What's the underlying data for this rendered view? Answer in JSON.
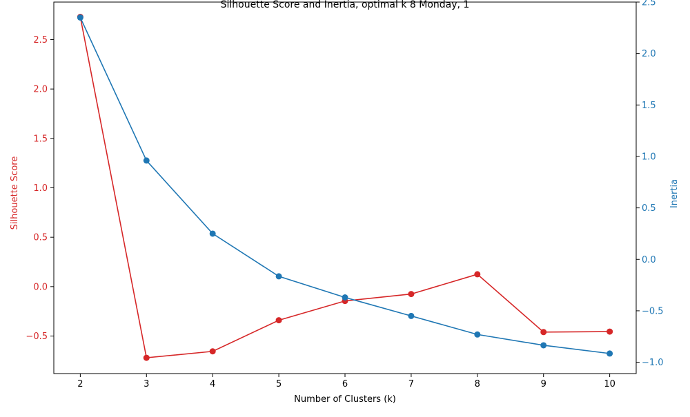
{
  "chart_data": {
    "type": "line",
    "title": "Silhouette Score and Inertia, optimal k 8 Monday, 1",
    "xlabel": "Number of Clusters (k)",
    "x": [
      2,
      3,
      4,
      5,
      6,
      7,
      8,
      9,
      10
    ],
    "x_ticks": [
      "2",
      "3",
      "4",
      "5",
      "6",
      "7",
      "8",
      "9",
      "10"
    ],
    "xlim": [
      1.6,
      10.4
    ],
    "grid": false,
    "left_axis": {
      "label": "Silhouette Score",
      "color": "#d62728",
      "ylim": [
        -0.88,
        2.88
      ],
      "ticks": [
        -0.5,
        0.0,
        0.5,
        1.0,
        1.5,
        2.0,
        2.5
      ],
      "tick_labels": [
        "−0.5",
        "0.0",
        "0.5",
        "1.0",
        "1.5",
        "2.0",
        "2.5"
      ]
    },
    "right_axis": {
      "label": "Inertia",
      "color": "#1f77b4",
      "ylim": [
        -1.11,
        2.5
      ],
      "ticks": [
        -1.0,
        -0.5,
        0.0,
        0.5,
        1.0,
        1.5,
        2.0,
        2.5
      ],
      "tick_labels": [
        "−1.0",
        "−0.5",
        "0.0",
        "0.5",
        "1.0",
        "1.5",
        "2.0",
        "2.5"
      ]
    },
    "series": [
      {
        "name": "Silhouette Score",
        "axis": "left",
        "color": "#d62728",
        "values": [
          2.73,
          -0.72,
          -0.655,
          -0.34,
          -0.145,
          -0.075,
          0.125,
          -0.46,
          -0.455
        ]
      },
      {
        "name": "Inertia",
        "axis": "right",
        "color": "#1f77b4",
        "values": [
          2.35,
          0.96,
          0.25,
          -0.165,
          -0.37,
          -0.55,
          -0.73,
          -0.835,
          -0.915
        ]
      }
    ]
  }
}
